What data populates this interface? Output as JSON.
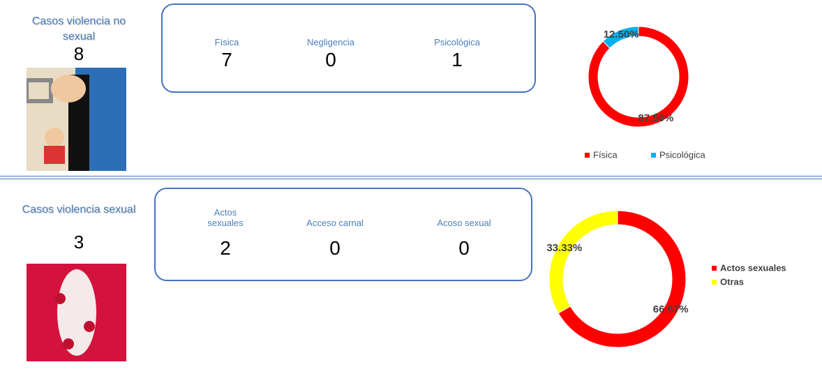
{
  "sections": [
    {
      "title": "Casos violencia no sexual",
      "total": 8,
      "breakdown": [
        {
          "label": "Física",
          "value": 7
        },
        {
          "label": "Negligencia",
          "value": 0
        },
        {
          "label": "Psicológica",
          "value": 1
        }
      ]
    },
    {
      "title": "Casos violencia sexual",
      "total": 3,
      "breakdown": [
        {
          "label": "Actos sexuales",
          "value": 2
        },
        {
          "label": "Acceso carnal",
          "value": 0
        },
        {
          "label": "Acoso sexual",
          "value": 0
        }
      ]
    }
  ],
  "chart_data": [
    {
      "type": "pie",
      "donut": true,
      "categories": [
        "Física",
        "Psicológica"
      ],
      "values": [
        87.5,
        12.5
      ],
      "value_labels": [
        "87.50%",
        "12.50%"
      ],
      "colors": [
        "#ff0000",
        "#00b0f0"
      ],
      "legend": "bottom"
    },
    {
      "type": "pie",
      "donut": true,
      "categories": [
        "Actos sexuales",
        "Otras"
      ],
      "values": [
        66.67,
        33.33
      ],
      "value_labels": [
        "66.67%",
        "33.33%"
      ],
      "colors": [
        "#ff0000",
        "#ffff00"
      ],
      "legend": "right"
    }
  ]
}
